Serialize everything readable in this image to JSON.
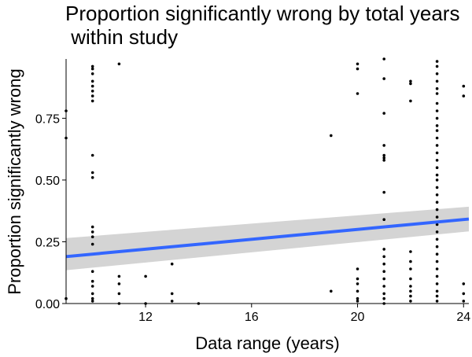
{
  "chart_data": {
    "type": "scatter",
    "title_line1": "Proportion significantly wrong by total years",
    "title_line2": " within study",
    "xlabel": "Data range (years)",
    "ylabel": "Proportion significantly wrong",
    "xlim": [
      9.0,
      24.2
    ],
    "ylim": [
      0.0,
      0.99
    ],
    "x_ticks": [
      12,
      16,
      20,
      24
    ],
    "x_tick_labels": [
      "12",
      "16",
      "20",
      "24"
    ],
    "y_ticks": [
      0.0,
      0.25,
      0.5,
      0.75
    ],
    "y_tick_labels": [
      "0.00",
      "0.25",
      "0.50",
      "0.75"
    ],
    "grid": false,
    "point_color": "#000000",
    "trend_color": "#3366FF",
    "band_color": "#CCCCCC",
    "trend": {
      "x": [
        9.0,
        24.2
      ],
      "y": [
        0.19,
        0.342
      ],
      "ci_upper": [
        0.265,
        0.392
      ],
      "ci_lower": [
        0.135,
        0.292
      ]
    },
    "points": [
      {
        "x": 9,
        "y": 0.78
      },
      {
        "x": 9,
        "y": 0.67
      },
      {
        "x": 9,
        "y": 0.02
      },
      {
        "x": 10,
        "y": 0.96
      },
      {
        "x": 10,
        "y": 0.95
      },
      {
        "x": 10,
        "y": 0.93
      },
      {
        "x": 10,
        "y": 0.9
      },
      {
        "x": 10,
        "y": 0.88
      },
      {
        "x": 10,
        "y": 0.86
      },
      {
        "x": 10,
        "y": 0.84
      },
      {
        "x": 10,
        "y": 0.82
      },
      {
        "x": 10,
        "y": 0.6
      },
      {
        "x": 10,
        "y": 0.53
      },
      {
        "x": 10,
        "y": 0.51
      },
      {
        "x": 10,
        "y": 0.31
      },
      {
        "x": 10,
        "y": 0.29
      },
      {
        "x": 10,
        "y": 0.27
      },
      {
        "x": 10,
        "y": 0.24
      },
      {
        "x": 10,
        "y": 0.13
      },
      {
        "x": 10,
        "y": 0.09
      },
      {
        "x": 10,
        "y": 0.07
      },
      {
        "x": 10,
        "y": 0.04
      },
      {
        "x": 10,
        "y": 0.02
      },
      {
        "x": 10,
        "y": 0.01
      },
      {
        "x": 11,
        "y": 0.97
      },
      {
        "x": 11,
        "y": 0.11
      },
      {
        "x": 11,
        "y": 0.08
      },
      {
        "x": 11,
        "y": 0.04
      },
      {
        "x": 11,
        "y": 0.0
      },
      {
        "x": 12,
        "y": 0.11
      },
      {
        "x": 12,
        "y": 0.0
      },
      {
        "x": 13,
        "y": 0.16
      },
      {
        "x": 13,
        "y": 0.04
      },
      {
        "x": 13,
        "y": 0.01
      },
      {
        "x": 14,
        "y": 0.0
      },
      {
        "x": 19,
        "y": 0.68
      },
      {
        "x": 19,
        "y": 0.05
      },
      {
        "x": 20,
        "y": 0.97
      },
      {
        "x": 20,
        "y": 0.95
      },
      {
        "x": 20,
        "y": 0.85
      },
      {
        "x": 20,
        "y": 0.14
      },
      {
        "x": 20,
        "y": 0.1
      },
      {
        "x": 20,
        "y": 0.08
      },
      {
        "x": 20,
        "y": 0.05
      },
      {
        "x": 20,
        "y": 0.02
      },
      {
        "x": 20,
        "y": 0.01
      },
      {
        "x": 21,
        "y": 0.99
      },
      {
        "x": 21,
        "y": 0.91
      },
      {
        "x": 21,
        "y": 0.77
      },
      {
        "x": 21,
        "y": 0.64
      },
      {
        "x": 21,
        "y": 0.6
      },
      {
        "x": 21,
        "y": 0.59
      },
      {
        "x": 21,
        "y": 0.58
      },
      {
        "x": 21,
        "y": 0.45
      },
      {
        "x": 21,
        "y": 0.34
      },
      {
        "x": 21,
        "y": 0.22
      },
      {
        "x": 21,
        "y": 0.19
      },
      {
        "x": 21,
        "y": 0.16
      },
      {
        "x": 21,
        "y": 0.13
      },
      {
        "x": 21,
        "y": 0.1
      },
      {
        "x": 21,
        "y": 0.07
      },
      {
        "x": 21,
        "y": 0.04
      },
      {
        "x": 21,
        "y": 0.02
      },
      {
        "x": 21,
        "y": 0.0
      },
      {
        "x": 22,
        "y": 0.9
      },
      {
        "x": 22,
        "y": 0.89
      },
      {
        "x": 22,
        "y": 0.82
      },
      {
        "x": 22,
        "y": 0.21
      },
      {
        "x": 22,
        "y": 0.17
      },
      {
        "x": 22,
        "y": 0.14
      },
      {
        "x": 22,
        "y": 0.1
      },
      {
        "x": 22,
        "y": 0.07
      },
      {
        "x": 22,
        "y": 0.05
      },
      {
        "x": 22,
        "y": 0.03
      },
      {
        "x": 22,
        "y": 0.01
      },
      {
        "x": 23,
        "y": 0.98
      },
      {
        "x": 23,
        "y": 0.96
      },
      {
        "x": 23,
        "y": 0.93
      },
      {
        "x": 23,
        "y": 0.9
      },
      {
        "x": 23,
        "y": 0.87
      },
      {
        "x": 23,
        "y": 0.85
      },
      {
        "x": 23,
        "y": 0.81
      },
      {
        "x": 23,
        "y": 0.78
      },
      {
        "x": 23,
        "y": 0.75
      },
      {
        "x": 23,
        "y": 0.72
      },
      {
        "x": 23,
        "y": 0.7
      },
      {
        "x": 23,
        "y": 0.67
      },
      {
        "x": 23,
        "y": 0.64
      },
      {
        "x": 23,
        "y": 0.61
      },
      {
        "x": 23,
        "y": 0.58
      },
      {
        "x": 23,
        "y": 0.55
      },
      {
        "x": 23,
        "y": 0.52
      },
      {
        "x": 23,
        "y": 0.5
      },
      {
        "x": 23,
        "y": 0.47
      },
      {
        "x": 23,
        "y": 0.44
      },
      {
        "x": 23,
        "y": 0.41
      },
      {
        "x": 23,
        "y": 0.38
      },
      {
        "x": 23,
        "y": 0.35
      },
      {
        "x": 23,
        "y": 0.32
      },
      {
        "x": 23,
        "y": 0.29
      },
      {
        "x": 23,
        "y": 0.26
      },
      {
        "x": 23,
        "y": 0.23
      },
      {
        "x": 23,
        "y": 0.2
      },
      {
        "x": 23,
        "y": 0.17
      },
      {
        "x": 23,
        "y": 0.14
      },
      {
        "x": 23,
        "y": 0.11
      },
      {
        "x": 23,
        "y": 0.08
      },
      {
        "x": 23,
        "y": 0.05
      },
      {
        "x": 23,
        "y": 0.03
      },
      {
        "x": 23,
        "y": 0.01
      },
      {
        "x": 24,
        "y": 0.88
      },
      {
        "x": 24,
        "y": 0.84
      },
      {
        "x": 24,
        "y": 0.08
      },
      {
        "x": 24,
        "y": 0.04
      },
      {
        "x": 24,
        "y": 0.01
      }
    ]
  }
}
